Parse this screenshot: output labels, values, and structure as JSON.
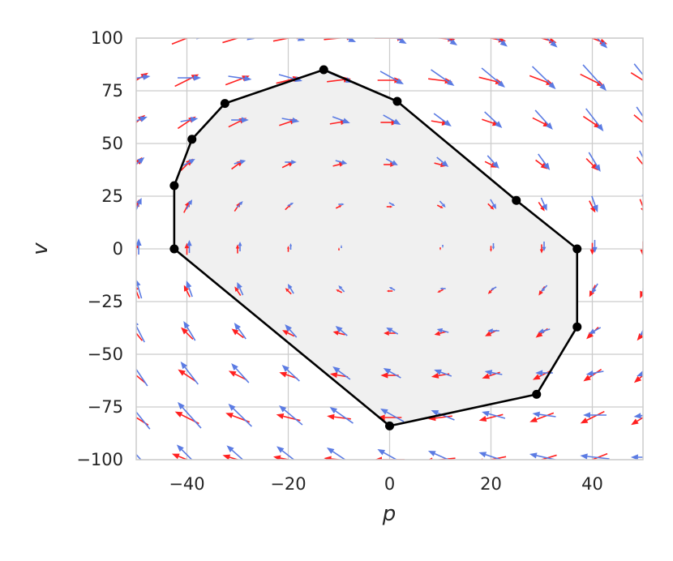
{
  "chart_data": {
    "type": "quiver",
    "xlabel": "p",
    "ylabel": "v",
    "xlim": [
      -50,
      50
    ],
    "ylim": [
      -100,
      100
    ],
    "grid": true,
    "x_ticks": [
      -40,
      -20,
      0,
      20,
      40
    ],
    "y_ticks": [
      -100,
      -75,
      -50,
      -25,
      0,
      25,
      50,
      75,
      100
    ],
    "x_tick_labels": [
      "−40",
      "−20",
      "0",
      "20",
      "40"
    ],
    "y_tick_labels": [
      "−100",
      "−75",
      "−50",
      "−25",
      "0",
      "25",
      "50",
      "75",
      "100"
    ],
    "colors": {
      "red_field": "#ff2020",
      "blue_field": "#5b7be3",
      "region_fill": "#f0f0f0",
      "region_edge": "#000000",
      "grid": "#cccccc"
    },
    "vector_grid": {
      "x": [
        -50,
        -40,
        -30,
        -20,
        -10,
        0,
        10,
        20,
        30,
        40,
        50
      ],
      "y": [
        -100,
        -80,
        -60,
        -40,
        -20,
        0,
        20,
        40,
        60,
        80,
        100
      ]
    },
    "region_vertices": [
      [
        -13,
        85
      ],
      [
        1.5,
        70
      ],
      [
        25,
        23
      ],
      [
        37,
        0
      ],
      [
        37,
        -37
      ],
      [
        29,
        -69
      ],
      [
        0,
        -84
      ],
      [
        -42.5,
        0
      ],
      [
        -42.5,
        30
      ],
      [
        -39,
        52
      ],
      [
        -32.5,
        69
      ]
    ]
  }
}
